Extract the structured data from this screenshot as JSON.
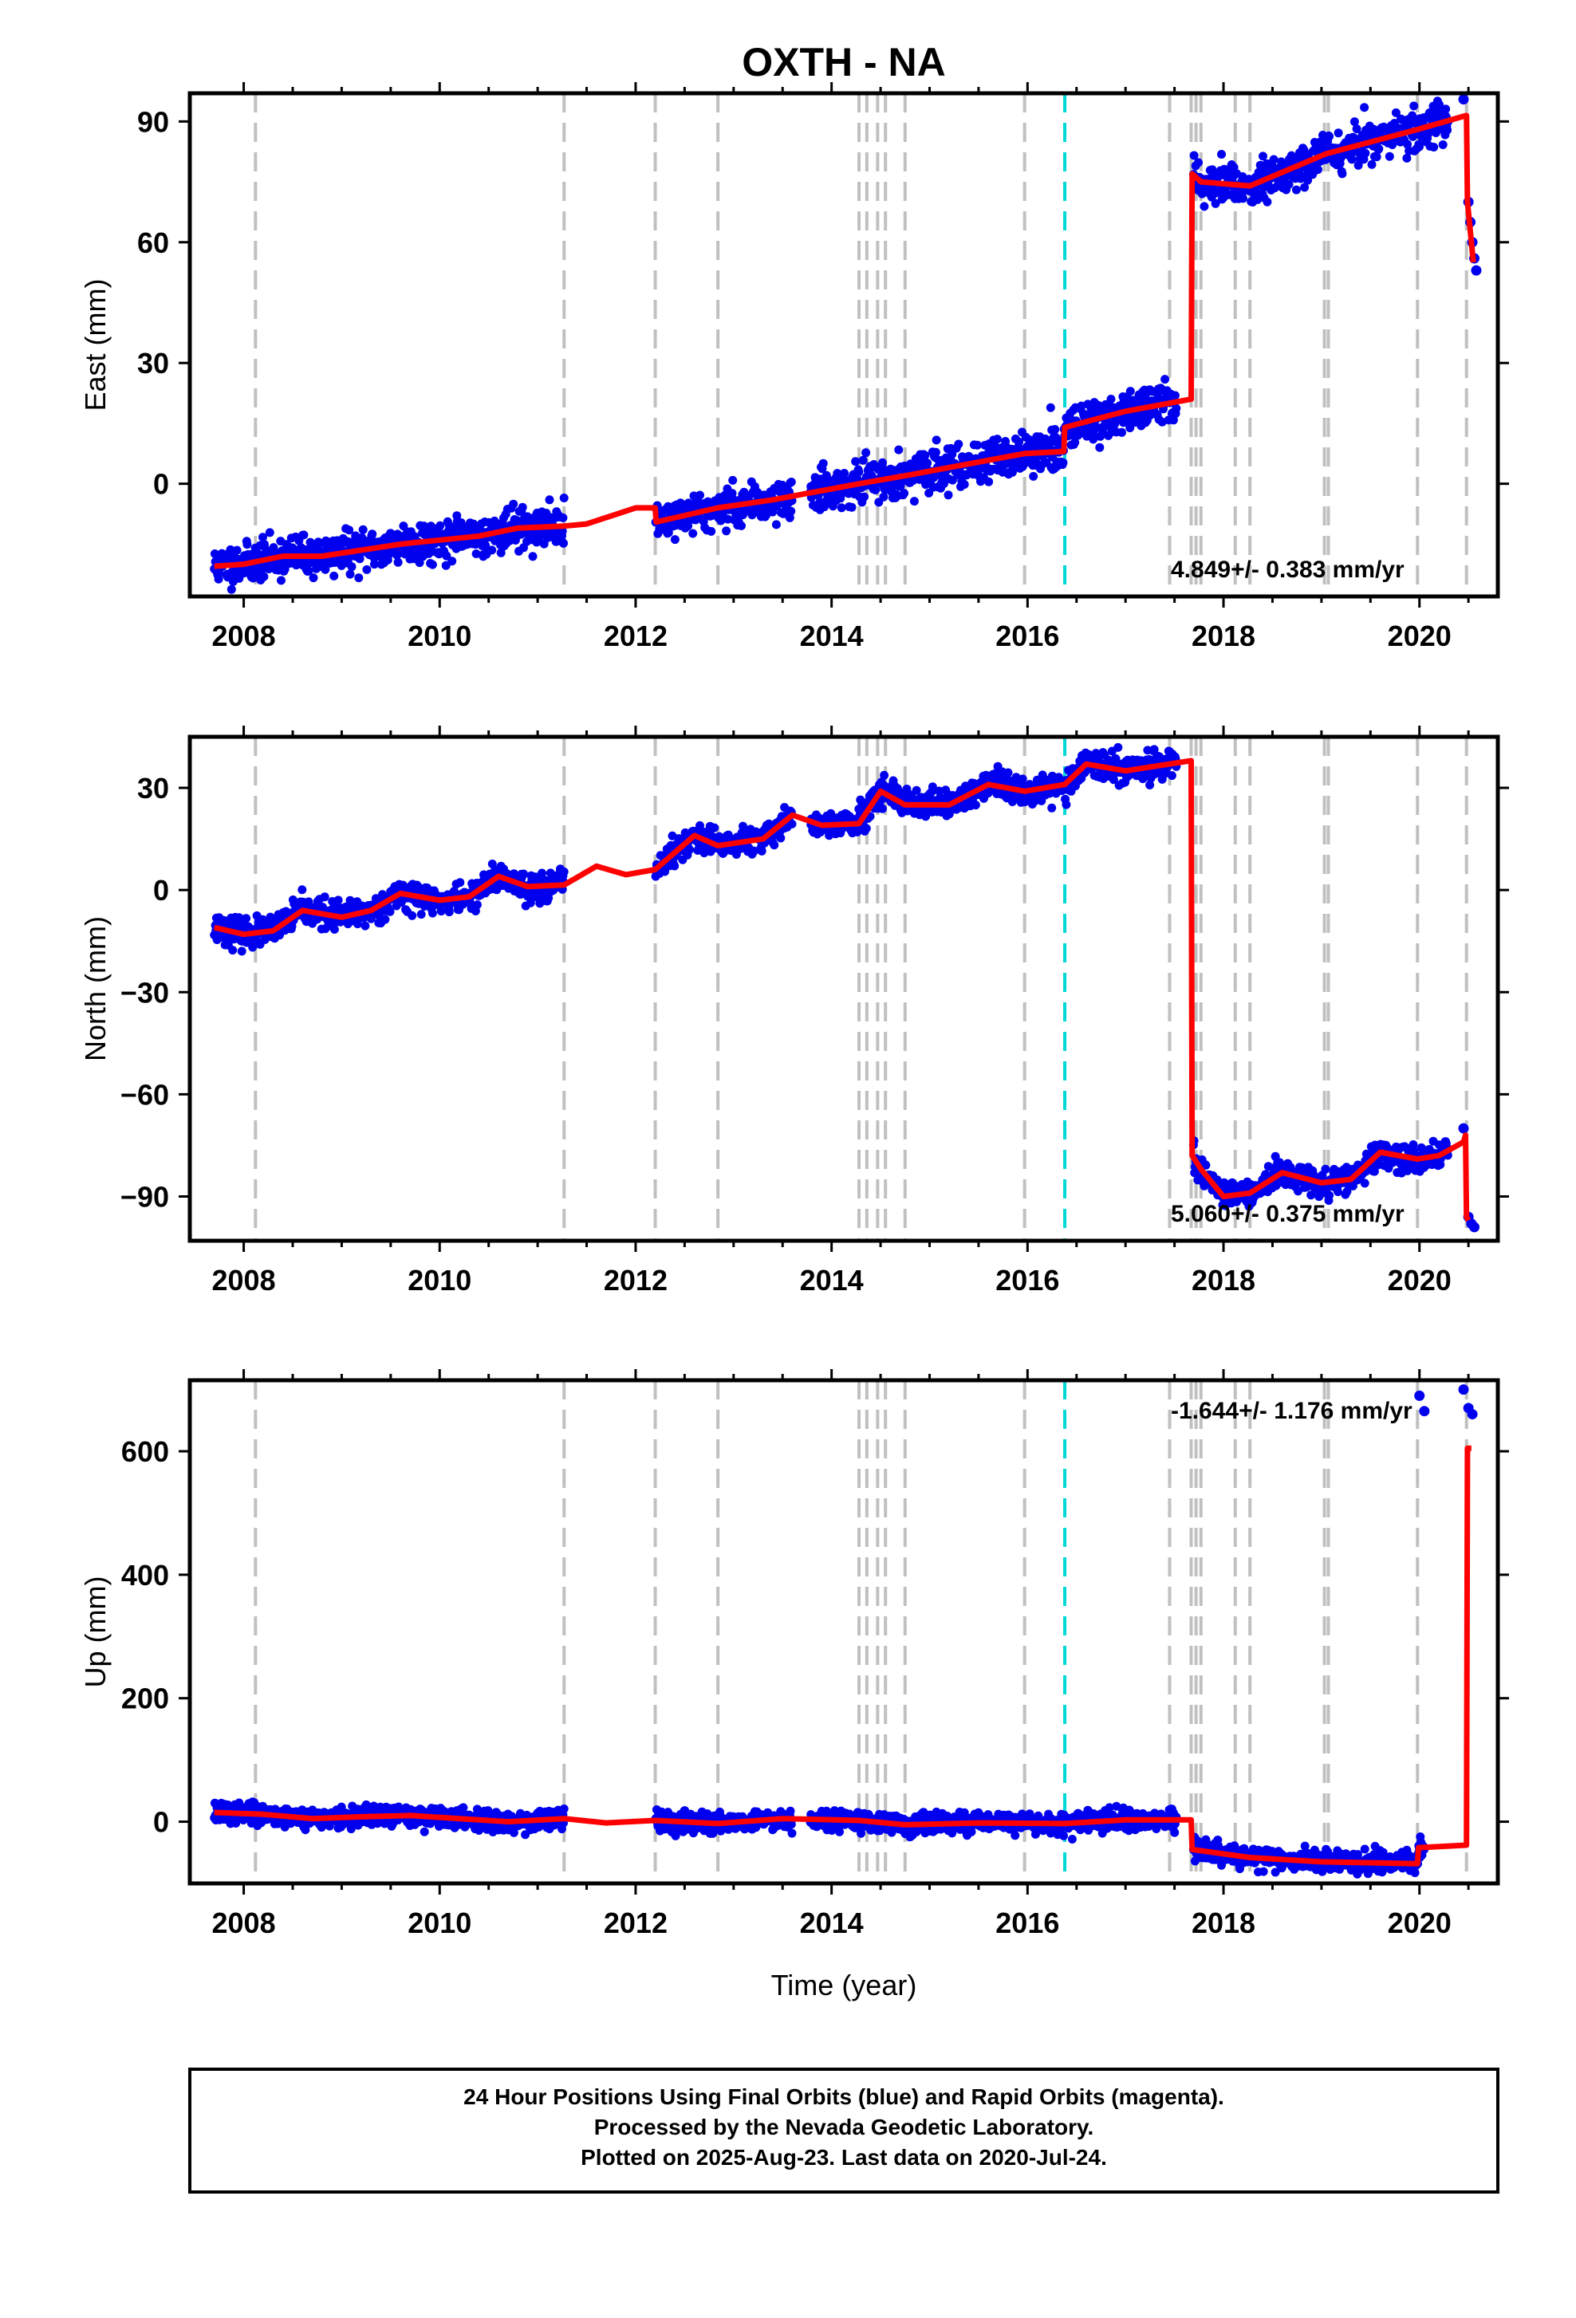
{
  "title": "OXTH - NA",
  "xlabel": "Time (year)",
  "footer_lines": [
    "24 Hour Positions Using Final Orbits (blue) and Rapid Orbits (magenta).",
    "Processed by the Nevada Geodetic Laboratory.",
    "Plotted on 2025-Aug-23. Last data on 2020-Jul-24."
  ],
  "colors": {
    "data_points": "#0000ee",
    "model": "#ff0000",
    "equipment_change": "#c0c0c0",
    "earthquake": "#00d8d8"
  },
  "chart_data": [
    {
      "type": "scatter",
      "name": "east",
      "ylabel": "East (mm)",
      "xlim": [
        2007.45,
        2020.8
      ],
      "ylim": [
        -28,
        97
      ],
      "yticks": [
        0,
        30,
        60,
        90
      ],
      "xticks": [
        2008,
        2010,
        2012,
        2014,
        2016,
        2018,
        2020
      ],
      "rate": "4.849+/- 0.383 mm/yr",
      "gray_lines": [
        2008.12,
        2011.27,
        2012.2,
        2012.84,
        2014.28,
        2014.36,
        2014.47,
        2014.55,
        2014.75,
        2015.97,
        2017.45,
        2017.67,
        2017.72,
        2017.77,
        2018.12,
        2018.27,
        2019.03,
        2019.07,
        2019.98,
        2020.48
      ],
      "cyan_lines": [
        2016.38
      ],
      "gaps": [
        [
          2011.27,
          2012.2
        ],
        [
          2013.6,
          2013.78
        ],
        [
          2017.52,
          2017.69
        ]
      ],
      "model": [
        [
          2007.7,
          -20.5
        ],
        [
          2008.0,
          -20
        ],
        [
          2008.4,
          -18
        ],
        [
          2008.8,
          -18
        ],
        [
          2009.2,
          -16.5
        ],
        [
          2009.6,
          -15
        ],
        [
          2010.0,
          -14
        ],
        [
          2010.4,
          -13
        ],
        [
          2010.8,
          -11
        ],
        [
          2011.27,
          -10.5
        ],
        [
          2011.5,
          -10
        ],
        [
          2012.0,
          -6
        ],
        [
          2012.2,
          -6
        ],
        [
          2012.21,
          -9.5
        ],
        [
          2012.84,
          -6
        ],
        [
          2013.4,
          -4
        ],
        [
          2014.28,
          0
        ],
        [
          2014.75,
          2
        ],
        [
          2015.97,
          7.5
        ],
        [
          2016.37,
          8
        ],
        [
          2016.38,
          14
        ],
        [
          2017.0,
          18
        ],
        [
          2017.67,
          21
        ],
        [
          2017.68,
          77
        ],
        [
          2017.77,
          75
        ],
        [
          2018.27,
          74
        ],
        [
          2019.05,
          82
        ],
        [
          2019.98,
          88
        ],
        [
          2020.48,
          91.5
        ],
        [
          2020.49,
          70
        ],
        [
          2020.55,
          55
        ]
      ],
      "tail": [
        [
          2020.45,
          95.5
        ],
        [
          2020.5,
          70
        ],
        [
          2020.52,
          65
        ],
        [
          2020.54,
          60
        ],
        [
          2020.56,
          56
        ],
        [
          2020.58,
          53
        ]
      ],
      "noise": 2.4,
      "seed": 11
    },
    {
      "type": "scatter",
      "name": "north",
      "ylabel": "North (mm)",
      "xlim": [
        2007.45,
        2020.8
      ],
      "ylim": [
        -103,
        45
      ],
      "yticks": [
        -90,
        -60,
        -30,
        0,
        30
      ],
      "xticks": [
        2008,
        2010,
        2012,
        2014,
        2016,
        2018,
        2020
      ],
      "rate": "5.060+/- 0.375 mm/yr",
      "gray_lines": [
        2008.12,
        2011.27,
        2012.2,
        2012.84,
        2014.28,
        2014.36,
        2014.47,
        2014.55,
        2014.75,
        2015.97,
        2017.45,
        2017.67,
        2017.72,
        2017.77,
        2018.12,
        2018.27,
        2019.03,
        2019.07,
        2019.98,
        2020.48
      ],
      "cyan_lines": [
        2016.38
      ],
      "gaps": [
        [
          2011.27,
          2012.2
        ],
        [
          2013.6,
          2013.78
        ],
        [
          2017.52,
          2017.69
        ]
      ],
      "model": [
        [
          2007.7,
          -11
        ],
        [
          2008.0,
          -13
        ],
        [
          2008.3,
          -12
        ],
        [
          2008.6,
          -6
        ],
        [
          2009.0,
          -8
        ],
        [
          2009.3,
          -6
        ],
        [
          2009.6,
          -1
        ],
        [
          2010.0,
          -3
        ],
        [
          2010.3,
          -2
        ],
        [
          2010.6,
          4
        ],
        [
          2010.9,
          1
        ],
        [
          2011.27,
          1.5
        ],
        [
          2011.6,
          7
        ],
        [
          2011.9,
          4.5
        ],
        [
          2012.2,
          6
        ],
        [
          2012.6,
          16
        ],
        [
          2012.84,
          13
        ],
        [
          2013.3,
          15
        ],
        [
          2013.6,
          22
        ],
        [
          2013.9,
          19
        ],
        [
          2014.28,
          19.5
        ],
        [
          2014.5,
          29
        ],
        [
          2014.75,
          25
        ],
        [
          2015.2,
          25
        ],
        [
          2015.6,
          31
        ],
        [
          2015.97,
          29
        ],
        [
          2016.38,
          31
        ],
        [
          2016.6,
          37
        ],
        [
          2017.0,
          35
        ],
        [
          2017.67,
          38
        ],
        [
          2017.68,
          -78
        ],
        [
          2017.77,
          -82
        ],
        [
          2018.0,
          -90
        ],
        [
          2018.27,
          -89
        ],
        [
          2018.6,
          -83
        ],
        [
          2019.0,
          -86
        ],
        [
          2019.3,
          -85
        ],
        [
          2019.6,
          -77
        ],
        [
          2019.98,
          -79
        ],
        [
          2020.2,
          -78
        ],
        [
          2020.45,
          -74
        ],
        [
          2020.47,
          -72
        ],
        [
          2020.48,
          -96
        ],
        [
          2020.5,
          -97
        ]
      ],
      "tail": [
        [
          2020.45,
          -70
        ],
        [
          2020.5,
          -96
        ],
        [
          2020.53,
          -98
        ],
        [
          2020.56,
          -99
        ]
      ],
      "noise": 2.0,
      "seed": 23
    },
    {
      "type": "scatter",
      "name": "up",
      "ylabel": "Up (mm)",
      "xlim": [
        2007.45,
        2020.8
      ],
      "ylim": [
        -100,
        715
      ],
      "yticks": [
        0,
        200,
        400,
        600
      ],
      "xticks": [
        2008,
        2010,
        2012,
        2014,
        2016,
        2018,
        2020
      ],
      "rate": "-1.644+/- 1.176 mm/yr",
      "gray_lines": [
        2008.12,
        2011.27,
        2012.2,
        2012.84,
        2014.28,
        2014.36,
        2014.47,
        2014.55,
        2014.75,
        2015.97,
        2017.45,
        2017.67,
        2017.72,
        2017.77,
        2018.12,
        2018.27,
        2019.03,
        2019.07,
        2019.98,
        2020.48
      ],
      "cyan_lines": [
        2016.38
      ],
      "gaps": [
        [
          2011.27,
          2012.2
        ],
        [
          2013.6,
          2013.78
        ],
        [
          2017.52,
          2017.69
        ]
      ],
      "model": [
        [
          2007.7,
          15
        ],
        [
          2008.2,
          12
        ],
        [
          2008.7,
          5
        ],
        [
          2009.2,
          8
        ],
        [
          2009.7,
          10
        ],
        [
          2010.2,
          5
        ],
        [
          2010.7,
          0
        ],
        [
          2011.27,
          5
        ],
        [
          2011.7,
          -2
        ],
        [
          2012.2,
          2
        ],
        [
          2012.84,
          -3
        ],
        [
          2013.5,
          5
        ],
        [
          2014.28,
          2
        ],
        [
          2014.75,
          -5
        ],
        [
          2015.5,
          -2
        ],
        [
          2016.38,
          -3
        ],
        [
          2017.0,
          3
        ],
        [
          2017.67,
          3
        ],
        [
          2017.68,
          -45
        ],
        [
          2018.27,
          -58
        ],
        [
          2019.0,
          -65
        ],
        [
          2019.98,
          -68
        ],
        [
          2019.99,
          -42
        ],
        [
          2020.48,
          -38
        ],
        [
          2020.49,
          605
        ],
        [
          2020.53,
          605
        ]
      ],
      "tail": [
        [
          2020.0,
          690
        ],
        [
          2020.05,
          665
        ],
        [
          2020.45,
          700
        ],
        [
          2020.5,
          670
        ],
        [
          2020.54,
          660
        ]
      ],
      "noise": 8.0,
      "seed": 37
    }
  ]
}
